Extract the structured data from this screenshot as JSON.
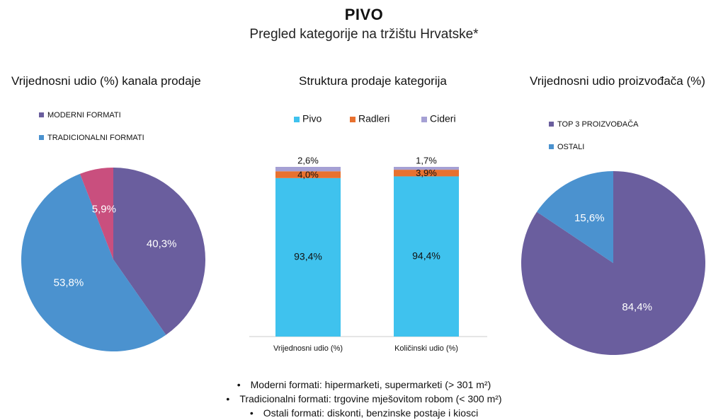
{
  "header": {
    "title": "PIVO",
    "subtitle": "Pregled kategorije na tržištu Hrvatske*"
  },
  "colors": {
    "purple": "#6a5e9e",
    "blue": "#4b92cf",
    "pink": "#c94f7e",
    "cyan": "#3fc2ee",
    "orange": "#e8712f",
    "lavender": "#a5a0d4"
  },
  "chart_data": [
    {
      "type": "pie",
      "title": "Vrijednosni udio (%) kanala prodaje",
      "legend": "top-left",
      "slices": [
        {
          "name": "MODERNI FORMATI",
          "value": 40.3,
          "label": "40,3%",
          "color": "#6a5e9e",
          "in_legend": true
        },
        {
          "name": "TRADICIONALNI FORMATI",
          "value": 53.8,
          "label": "53,8%",
          "color": "#4b92cf",
          "in_legend": true
        },
        {
          "name": "",
          "value": 5.9,
          "label": "5,9%",
          "color": "#c94f7e",
          "in_legend": false
        }
      ]
    },
    {
      "type": "bar",
      "stacked": true,
      "title": "Struktura prodaje kategorija",
      "legend": "top",
      "ylim": [
        0,
        100
      ],
      "categories": [
        "Vrijednosni udio (%)",
        "Količinski udio (%)"
      ],
      "series": [
        {
          "name": "Pivo",
          "color": "#3fc2ee",
          "values": [
            93.4,
            94.4
          ],
          "labels": [
            "93,4%",
            "94,4%"
          ]
        },
        {
          "name": "Radleri",
          "color": "#e8712f",
          "values": [
            4.0,
            3.9
          ],
          "labels": [
            "4,0%",
            "3,9%"
          ]
        },
        {
          "name": "Cideri",
          "color": "#a5a0d4",
          "values": [
            2.6,
            1.7
          ],
          "labels": [
            "2,6%",
            "1,7%"
          ]
        }
      ]
    },
    {
      "type": "pie",
      "title": "Vrijednosni udio proizvođača (%)",
      "legend": "top-left",
      "slices": [
        {
          "name": "TOP 3 PROIZVOĐAČA",
          "value": 84.4,
          "label": "84,4%",
          "color": "#6a5e9e",
          "in_legend": true
        },
        {
          "name": "OSTALI",
          "value": 15.6,
          "label": "15,6%",
          "color": "#4b92cf",
          "in_legend": true
        }
      ]
    }
  ],
  "notes": [
    "Moderni formati: hipermarketi, supermarketi (> 301 m²)",
    "Tradicionalni formati: trgovine mješovitom robom (< 300 m²)",
    "Ostali formati: diskonti, benzinske postaje i kiosci"
  ]
}
